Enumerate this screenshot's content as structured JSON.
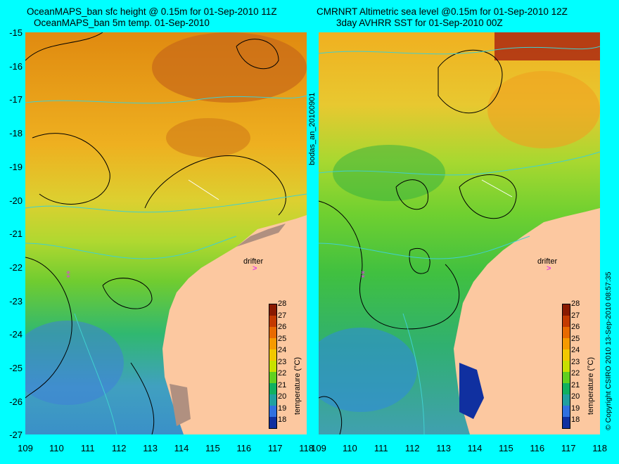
{
  "left_panel": {
    "title_line1": "OceanMAPS_ban sfc height @ 0.15m for 01-Sep-2010 11Z",
    "title_line2": "OceanMAPS_ban 5m temp. 01-Sep-2010"
  },
  "right_panel": {
    "title_line1": "CMRNRT Altimetric sea level  @0.15m  for 01-Sep-2010 12Z",
    "title_line2": "3day AVHRR SST for 01-Sep-2010 00Z"
  },
  "side_label": "bodas_an_20100901",
  "copyright": "© Copyright CSIRO 2010   13-Sep-2010 08:57:35",
  "drifter_label": "drifter",
  "drifter_marker": ">",
  "colorbar": {
    "label": "temperature (°C)",
    "ticks": [
      "28",
      "27",
      "26",
      "25",
      "24",
      "23",
      "22",
      "21",
      "20",
      "19",
      "18"
    ],
    "colors": [
      "#8a1a00",
      "#c43a00",
      "#e86a00",
      "#f59a00",
      "#f2c800",
      "#c8e000",
      "#60d020",
      "#10b060",
      "#20a0a0",
      "#3070e0",
      "#1030a0"
    ]
  },
  "map": {
    "lat_ticks": [
      "-15",
      "-16",
      "-17",
      "-18",
      "-19",
      "-20",
      "-21",
      "-22",
      "-23",
      "-24",
      "-25",
      "-26",
      "-27"
    ],
    "lon_ticks": [
      "109",
      "110",
      "111",
      "112",
      "113",
      "114",
      "115",
      "116",
      "117",
      "118"
    ],
    "land_color": "#fcc8a0",
    "contour_color": "#000000",
    "bathymetry_color": "#40d0d0"
  }
}
